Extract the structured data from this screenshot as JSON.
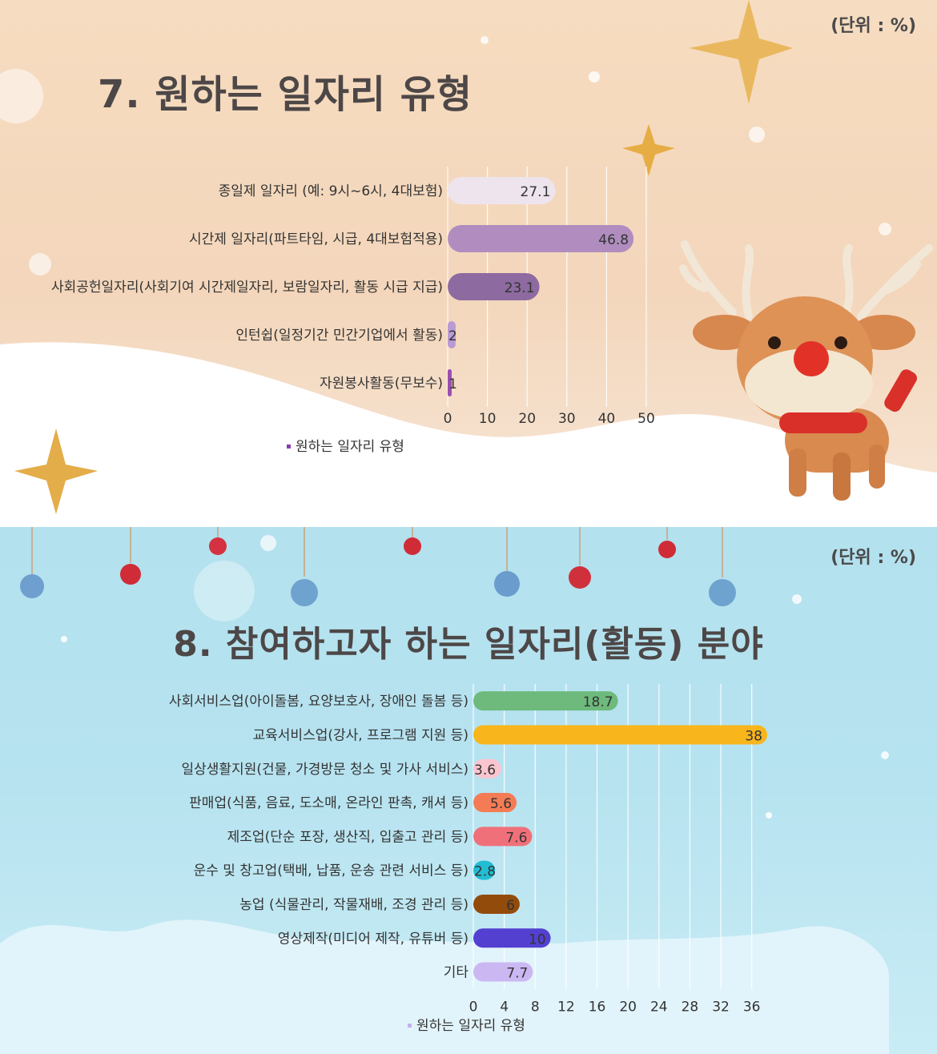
{
  "panel1": {
    "unit": "(단위 : %)",
    "title": "7. 원하는 일자리 유형",
    "legend": "원하는 일자리 유형"
  },
  "panel2": {
    "unit": "(단위 : %)",
    "title": "8. 참여하고자 하는 일자리(활동) 분야",
    "legend": "원하는 일자리 유형"
  },
  "chart_data": [
    {
      "type": "bar",
      "orientation": "horizontal",
      "title": "7. 원하는 일자리 유형",
      "categories": [
        "종일제 일자리 (예: 9시~6시, 4대보험)",
        "시간제 일자리(파트타임, 시급, 4대보험적용)",
        "사회공헌일자리(사회기여 시간제일자리, 보람일자리, 활동 시급 지급)",
        "인턴쉽(일정기간 민간기업에서 활동)",
        "자원봉사활동(무보수)"
      ],
      "series": [
        {
          "name": "원하는 일자리 유형",
          "values": [
            27.1,
            46.8,
            23.1,
            2,
            1
          ]
        }
      ],
      "colors": [
        "#ede4ee",
        "#b08dbe",
        "#8d6a9f",
        "#b99bd2",
        "#9a4fb0"
      ],
      "xlim": [
        0,
        50
      ],
      "xticks": [
        0,
        10,
        20,
        30,
        40,
        50
      ],
      "grid": true,
      "legend_position": "bottom"
    },
    {
      "type": "bar",
      "orientation": "horizontal",
      "title": "8. 참여하고자 하는 일자리(활동) 분야",
      "categories": [
        "사회서비스업(아이돌봄, 요양보호사, 장애인 돌봄 등)",
        "교육서비스업(강사, 프로그램 지원 등)",
        "일상생활지원(건물, 가경방문 청소 및 가사 서비스)",
        "판매업(식품, 음료, 도소매, 온라인 판촉, 캐셔 등)",
        "제조업(단순 포장, 생산직, 입출고 관리 등)",
        "운수 및 창고업(택배, 납품, 운송 관련 서비스 등)",
        "농업 (식물관리, 작물재배, 조경 관리 등)",
        "영상제작(미디어 제작, 유튜버 등)",
        "기타"
      ],
      "series": [
        {
          "name": "원하는 일자리 유형",
          "values": [
            18.7,
            38,
            3.6,
            5.6,
            7.6,
            2.8,
            6,
            10,
            7.7
          ]
        }
      ],
      "colors": [
        "#6dba7c",
        "#f8b51c",
        "#f9c5cf",
        "#f47c55",
        "#f0707a",
        "#22bdd3",
        "#934b0c",
        "#5340d0",
        "#cbb8f3"
      ],
      "xlim": [
        0,
        38
      ],
      "xticks": [
        0,
        4,
        8,
        12,
        16,
        20,
        24,
        28,
        32,
        36
      ],
      "grid": true,
      "legend_position": "bottom"
    }
  ]
}
